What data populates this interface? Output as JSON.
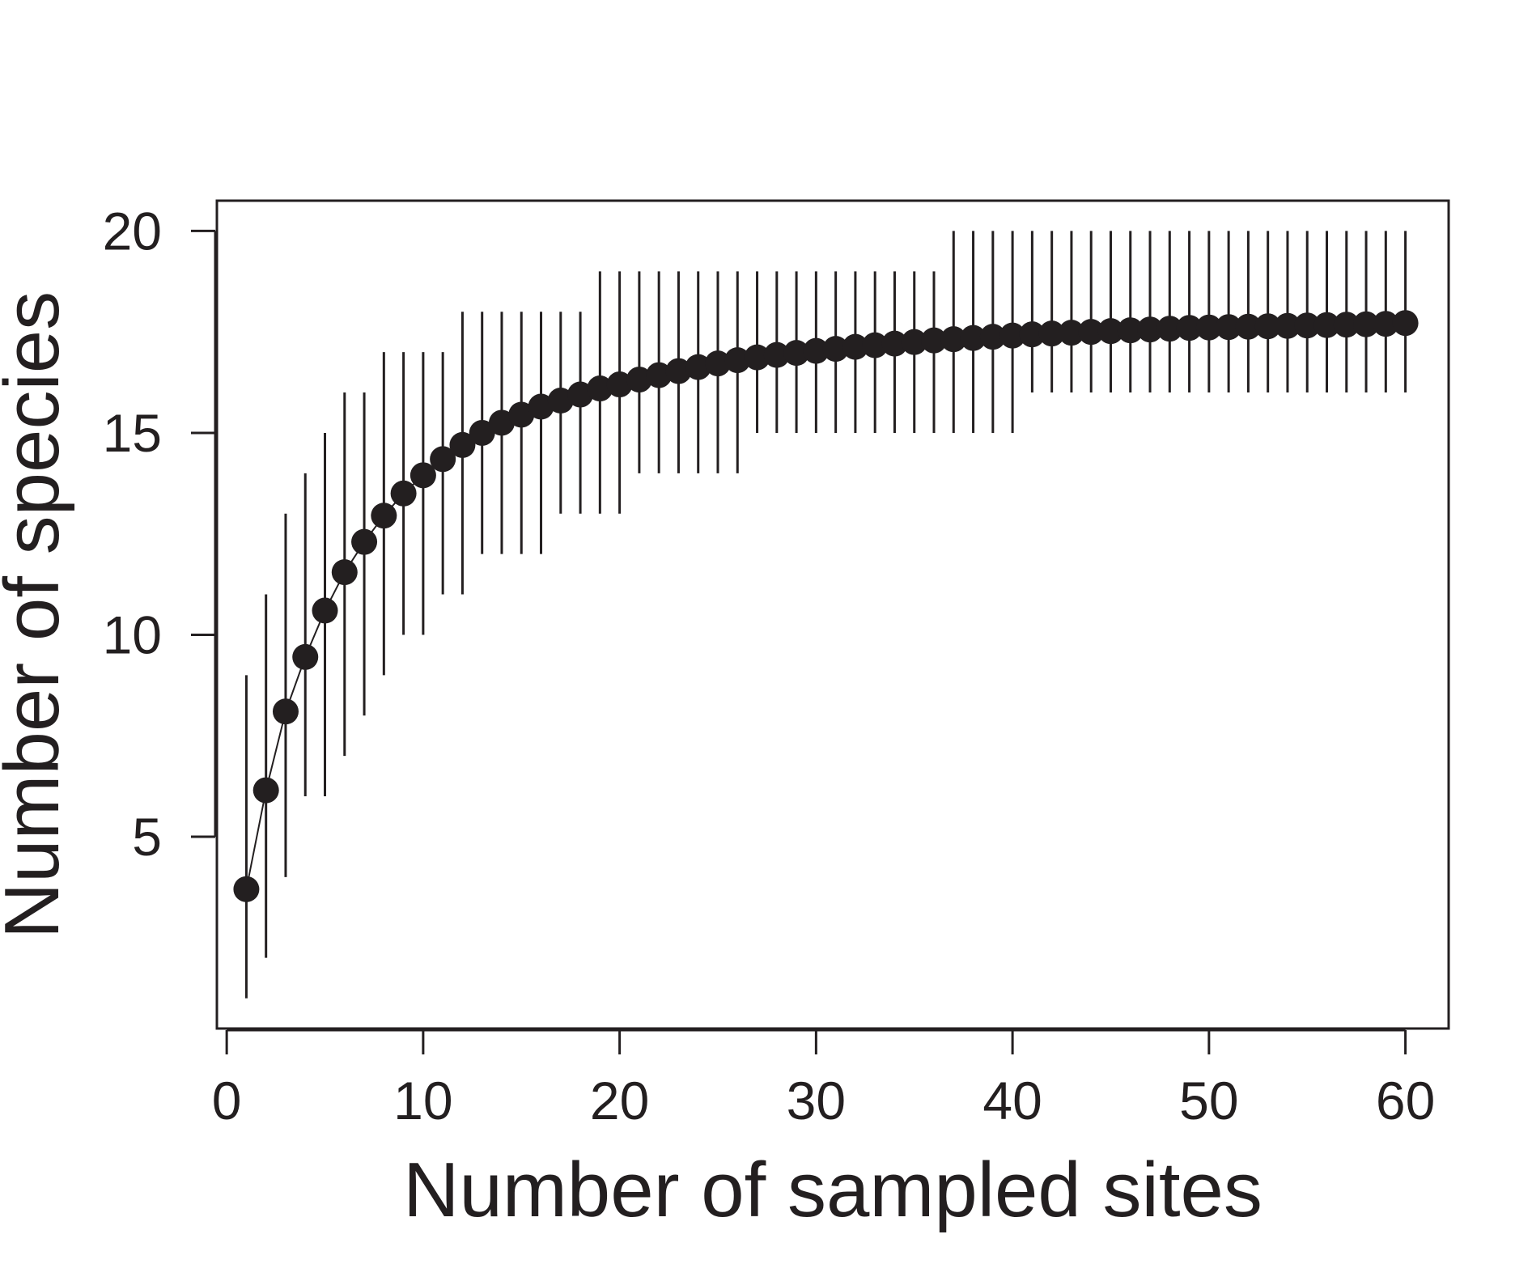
{
  "chart_data": {
    "type": "scatter",
    "title": "",
    "xlabel": "Number of sampled sites",
    "ylabel": "Number of species",
    "xlim": [
      -0.5,
      62.2
    ],
    "ylim": [
      0.25,
      20.75
    ],
    "x_ticks": [
      0,
      10,
      20,
      30,
      40,
      50,
      60
    ],
    "y_ticks": [
      5,
      10,
      15,
      20
    ],
    "grid": false,
    "legend": "none",
    "colors": {
      "marks": "#231f20",
      "background": "#ffffff"
    },
    "series": [
      {
        "x": [
          1,
          2,
          3,
          4,
          5,
          6,
          7,
          8,
          9,
          10,
          11,
          12,
          13,
          14,
          15,
          16,
          17,
          18,
          19,
          20,
          21,
          22,
          23,
          24,
          25,
          26,
          27,
          28,
          29,
          30,
          31,
          32,
          33,
          34,
          35,
          36,
          37,
          38,
          39,
          40,
          41,
          42,
          43,
          44,
          45,
          46,
          47,
          48,
          49,
          50,
          51,
          52,
          53,
          54,
          55,
          56,
          57,
          58,
          59,
          60
        ],
        "y": [
          3.7,
          6.15,
          8.1,
          9.45,
          10.6,
          11.55,
          12.3,
          12.95,
          13.5,
          13.95,
          14.35,
          14.7,
          15.0,
          15.25,
          15.45,
          15.65,
          15.8,
          15.95,
          16.1,
          16.2,
          16.32,
          16.43,
          16.53,
          16.63,
          16.72,
          16.8,
          16.87,
          16.93,
          16.98,
          17.03,
          17.08,
          17.13,
          17.17,
          17.21,
          17.25,
          17.29,
          17.32,
          17.35,
          17.38,
          17.41,
          17.44,
          17.46,
          17.48,
          17.5,
          17.52,
          17.54,
          17.56,
          17.58,
          17.6,
          17.61,
          17.62,
          17.63,
          17.64,
          17.65,
          17.66,
          17.67,
          17.68,
          17.69,
          17.7,
          17.72
        ],
        "lower": [
          1,
          2,
          4,
          6,
          6,
          7,
          8,
          9,
          10,
          10,
          11,
          11,
          12,
          12,
          12,
          12,
          13,
          13,
          13,
          13,
          14,
          14,
          14,
          14,
          14,
          14,
          15,
          15,
          15,
          15,
          15,
          15,
          15,
          15,
          15,
          15,
          15,
          15,
          15,
          15,
          16,
          16,
          16,
          16,
          16,
          16,
          16,
          16,
          16,
          16,
          16,
          16,
          16,
          16,
          16,
          16,
          16,
          16,
          16,
          16
        ],
        "upper": [
          9,
          11,
          13,
          14,
          15,
          16,
          16,
          17,
          17,
          17,
          17,
          18,
          18,
          18,
          18,
          18,
          18,
          18,
          19,
          19,
          19,
          19,
          19,
          19,
          19,
          19,
          19,
          19,
          19,
          19,
          19,
          19,
          19,
          19,
          19,
          19,
          20,
          20,
          20,
          20,
          20,
          20,
          20,
          20,
          20,
          20,
          20,
          20,
          20,
          20,
          20,
          20,
          20,
          20,
          20,
          20,
          20,
          20,
          20,
          20
        ]
      }
    ]
  }
}
